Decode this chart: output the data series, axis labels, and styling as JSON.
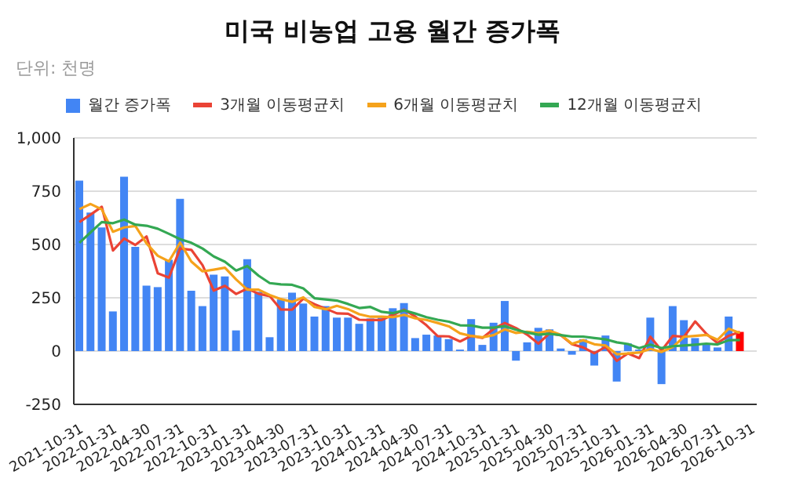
{
  "chart_data": {
    "type": "bar",
    "title": "미국 비농업 고용 월간 증가폭",
    "subtitle": "단위: 천명",
    "categories": [
      "2021-10-31",
      null,
      null,
      "2022-01-31",
      null,
      null,
      "2022-04-30",
      null,
      null,
      "2022-07-31",
      null,
      null,
      "2022-10-31",
      null,
      null,
      "2023-01-31",
      null,
      null,
      "2023-04-30",
      null,
      null,
      "2023-07-31",
      null,
      null,
      "2023-10-31",
      null,
      null,
      "2024-01-31",
      null,
      null,
      "2024-04-30",
      null,
      null,
      "2024-07-31",
      null,
      null,
      "2024-10-31",
      null,
      null,
      "2025-01-31",
      null,
      null,
      "2025-04-30",
      null,
      null,
      "2025-07-31",
      null,
      null,
      "2025-10-31",
      null,
      null,
      "2026-01-31",
      null,
      null,
      "2026-04-30",
      null,
      null,
      "2026-07-31",
      null,
      null,
      "2026-10-31"
    ],
    "series": [
      {
        "name": "월간 증가폭",
        "color": "#4285f4",
        "colors": [
          "#4285f4",
          "#4285f4",
          "#4285f4",
          "#4285f4",
          "#4285f4",
          "#4285f4",
          "#4285f4",
          "#4285f4",
          "#4285f4",
          "#4285f4",
          "#4285f4",
          "#4285f4",
          "#4285f4",
          "#4285f4",
          "#4285f4",
          "#4285f4",
          "#4285f4",
          "#4285f4",
          "#4285f4",
          "#4285f4",
          "#4285f4",
          "#4285f4",
          "#4285f4",
          "#4285f4",
          "#4285f4",
          "#4285f4",
          "#4285f4",
          "#4285f4",
          "#4285f4",
          "#4285f4",
          "#4285f4",
          "#4285f4",
          "#4285f4",
          "#4285f4",
          "#4285f4",
          "#4285f4",
          "#4285f4",
          "#4285f4",
          "#4285f4",
          "#4285f4",
          "#4285f4",
          "#4285f4",
          "#4285f4",
          "#4285f4",
          "#4285f4",
          "#4285f4",
          "#4285f4",
          "#4285f4",
          "#4285f4",
          "#4285f4",
          "#4285f4",
          "#4285f4",
          "#4285f4",
          "#4285f4",
          "#4285f4",
          "#4285f4",
          "#4285f4",
          "#4285f4",
          "#4285f4",
          "#ff0000",
          "#4285f4"
        ],
        "values": [
          800,
          650,
          580,
          186,
          818,
          489,
          307,
          300,
          428,
          714,
          283,
          211,
          358,
          350,
          97,
          431,
          278,
          65,
          242,
          274,
          223,
          162,
          211,
          157,
          157,
          128,
          153,
          157,
          201,
          225,
          61,
          77,
          73,
          56,
          7,
          150,
          29,
          133,
          235,
          -45,
          41,
          109,
          102,
          12,
          -17,
          56,
          -68,
          73,
          -143,
          36,
          7,
          157,
          -155,
          211,
          145,
          61,
          36,
          17,
          162,
          90,
          null
        ]
      },
      {
        "name": "3개월 이동평균치",
        "type": "line",
        "color": "#ea4335",
        "values": [
          605,
          640,
          677,
          472,
          528,
          498,
          538,
          365,
          345,
          481,
          475,
          403,
          284,
          306,
          268,
          293,
          269,
          258,
          195,
          194,
          246,
          220,
          199,
          177,
          175,
          147,
          146,
          146,
          170,
          194,
          162,
          121,
          70,
          69,
          45,
          71,
          62,
          104,
          132,
          108,
          77,
          35,
          84,
          74,
          32,
          17,
          -10,
          20,
          -46,
          -11,
          -33,
          67,
          3,
          71,
          67,
          139,
          81,
          38,
          72,
          90,
          null
        ]
      },
      {
        "name": "6개월 이동평균치",
        "type": "line",
        "color": "#f5a21b",
        "values": [
          666,
          690,
          665,
          560,
          580,
          587,
          505,
          447,
          421,
          509,
          420,
          374,
          382,
          391,
          336,
          288,
          288,
          263,
          244,
          231,
          252,
          207,
          196,
          212,
          197,
          173,
          161,
          161,
          159,
          170,
          154,
          146,
          132,
          116,
          83,
          71,
          65,
          75,
          102,
          85,
          91,
          84,
          96,
          76,
          34,
          51,
          32,
          26,
          -15,
          -11,
          -7,
          10,
          -4,
          19,
          67,
          71,
          76,
          53,
          105,
          85,
          null
        ]
      },
      {
        "name": "12개월 이동평균치",
        "type": "line",
        "color": "#34a853",
        "values": [
          508,
          557,
          605,
          600,
          617,
          593,
          588,
          574,
          550,
          525,
          508,
          481,
          444,
          419,
          378,
          399,
          354,
          319,
          313,
          311,
          294,
          248,
          242,
          237,
          221,
          202,
          207,
          184,
          178,
          191,
          176,
          159,
          147,
          138,
          121,
          120,
          110,
          110,
          117,
          100,
          87,
          77,
          81,
          75,
          68,
          68,
          61,
          55,
          41,
          33,
          14,
          30,
          14,
          23,
          26,
          30,
          35,
          31,
          51,
          52,
          null
        ]
      }
    ],
    "ylim": [
      -250,
      1000
    ],
    "yticks": [
      -250,
      0,
      250,
      500,
      750,
      {
        "value": 1000,
        "label": "1,000"
      }
    ],
    "grid": "y",
    "legend": "top"
  }
}
